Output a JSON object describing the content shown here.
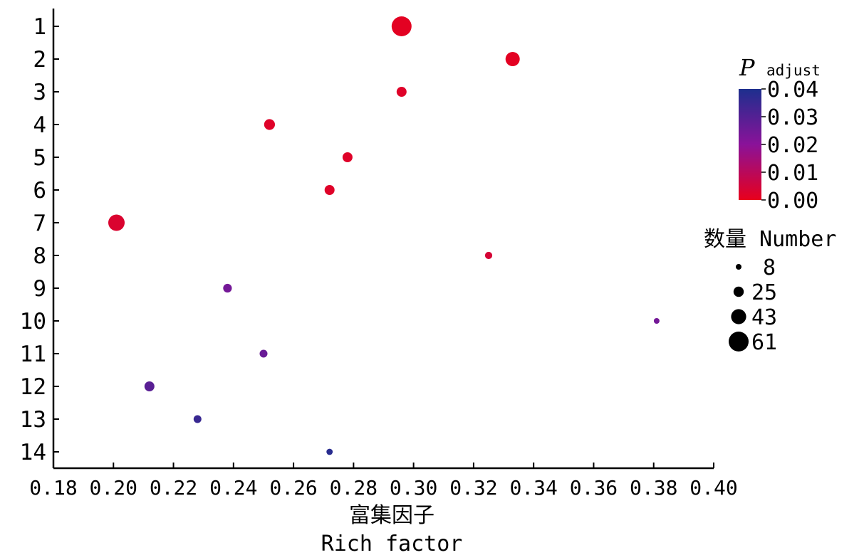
{
  "chart_data": {
    "type": "scatter",
    "title": "",
    "xlabel_cn": "富集因子",
    "xlabel_en": "Rich factor",
    "ylabel": "",
    "xlim": [
      0.18,
      0.4
    ],
    "x_ticks": [
      "0.18",
      "0.20",
      "0.22",
      "0.24",
      "0.26",
      "0.28",
      "0.30",
      "0.32",
      "0.34",
      "0.36",
      "0.38",
      "0.40"
    ],
    "y_categories": [
      "1",
      "2",
      "3",
      "4",
      "5",
      "6",
      "7",
      "8",
      "9",
      "10",
      "11",
      "12",
      "13",
      "14"
    ],
    "points": [
      {
        "category": "1",
        "rich_factor": 0.296,
        "number": 61,
        "p_adjust": 0.001
      },
      {
        "category": "2",
        "rich_factor": 0.333,
        "number": 40,
        "p_adjust": 0.001
      },
      {
        "category": "3",
        "rich_factor": 0.296,
        "number": 24,
        "p_adjust": 0.002
      },
      {
        "category": "4",
        "rich_factor": 0.252,
        "number": 27,
        "p_adjust": 0.002
      },
      {
        "category": "5",
        "rich_factor": 0.278,
        "number": 24,
        "p_adjust": 0.002
      },
      {
        "category": "6",
        "rich_factor": 0.272,
        "number": 24,
        "p_adjust": 0.002
      },
      {
        "category": "7",
        "rich_factor": 0.201,
        "number": 48,
        "p_adjust": 0.003
      },
      {
        "category": "8",
        "rich_factor": 0.325,
        "number": 14,
        "p_adjust": 0.004
      },
      {
        "category": "9",
        "rich_factor": 0.238,
        "number": 19,
        "p_adjust": 0.024
      },
      {
        "category": "10",
        "rich_factor": 0.381,
        "number": 8,
        "p_adjust": 0.024
      },
      {
        "category": "11",
        "rich_factor": 0.25,
        "number": 16,
        "p_adjust": 0.026
      },
      {
        "category": "12",
        "rich_factor": 0.212,
        "number": 24,
        "p_adjust": 0.029
      },
      {
        "category": "13",
        "rich_factor": 0.228,
        "number": 16,
        "p_adjust": 0.035
      },
      {
        "category": "14",
        "rich_factor": 0.272,
        "number": 10,
        "p_adjust": 0.038
      }
    ],
    "color_legend": {
      "title_main": "P",
      "title_sub": "adjust",
      "ticks": [
        "0.04",
        "0.03",
        "0.02",
        "0.01",
        "0.00"
      ],
      "min": 0.0,
      "max": 0.04,
      "low_color": "#e8001c",
      "mid_color": "#8a1299",
      "high_color": "#1d2f8e"
    },
    "size_legend": {
      "title": "数量 Number",
      "values": [
        8,
        25,
        43,
        61
      ]
    },
    "grid": false,
    "legend_position": "right"
  }
}
